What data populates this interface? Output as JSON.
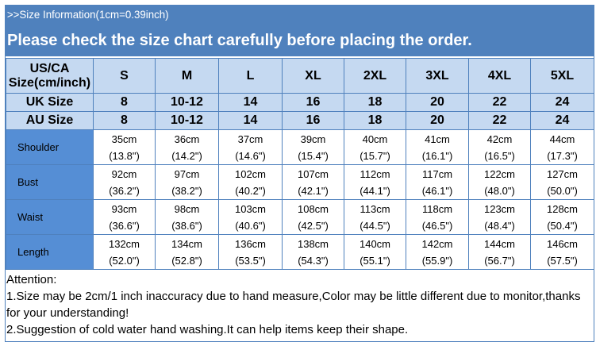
{
  "banner": {
    "title": ">>Size Information(1cm=0.39inch)",
    "subtitle": "Please check the size chart carefully before placing the order."
  },
  "colors": {
    "banner": "#4f81bd",
    "header_cell": "#c5d9f1",
    "label_cell": "#558ed5"
  },
  "table": {
    "corner": "US/CA Size(cm/inch)",
    "sizes": [
      "S",
      "M",
      "L",
      "XL",
      "2XL",
      "3XL",
      "4XL",
      "5XL"
    ],
    "uk": {
      "label": "UK Size",
      "values": [
        "8",
        "10-12",
        "14",
        "16",
        "18",
        "20",
        "22",
        "24"
      ]
    },
    "au": {
      "label": "AU Size",
      "values": [
        "8",
        "10-12",
        "14",
        "16",
        "18",
        "20",
        "22",
        "24"
      ]
    },
    "rows": [
      {
        "label": "Shoulder",
        "cm": [
          "35cm",
          "36cm",
          "37cm",
          "39cm",
          "40cm",
          "41cm",
          "42cm",
          "44cm"
        ],
        "inch": [
          "(13.8\")",
          "(14.2\")",
          "(14.6\")",
          "(15.4\")",
          "(15.7\")",
          "(16.1\")",
          "(16.5\")",
          "(17.3\")"
        ]
      },
      {
        "label": "Bust",
        "cm": [
          "92cm",
          "97cm",
          "102cm",
          "107cm",
          "112cm",
          "117cm",
          "122cm",
          "127cm"
        ],
        "inch": [
          "(36.2\")",
          "(38.2\")",
          "(40.2\")",
          "(42.1\")",
          "(44.1\")",
          "(46.1\")",
          "(48.0\")",
          "(50.0\")"
        ]
      },
      {
        "label": "Waist",
        "cm": [
          "93cm",
          "98cm",
          "103cm",
          "108cm",
          "113cm",
          "118cm",
          "123cm",
          "128cm"
        ],
        "inch": [
          "(36.6\")",
          "(38.6\")",
          "(40.6\")",
          "(42.5\")",
          "(44.5\")",
          "(46.5\")",
          "(48.4\")",
          "(50.4\")"
        ]
      },
      {
        "label": "Length",
        "cm": [
          "132cm",
          "134cm",
          "136cm",
          "138cm",
          "140cm",
          "142cm",
          "144cm",
          "146cm"
        ],
        "inch": [
          "(52.0\")",
          "(52.8\")",
          "(53.5\")",
          "(54.3\")",
          "(55.1\")",
          "(55.9\")",
          "(56.7\")",
          "(57.5\")"
        ]
      }
    ]
  },
  "attention": {
    "heading": "Attention:",
    "lines": [
      "1.Size may be 2cm/1  inch inaccuracy due to hand measure,Color may be little different due to monitor,thanks for your understanding!",
      "2.Suggestion of cold water hand washing.It can help items keep their shape."
    ]
  }
}
